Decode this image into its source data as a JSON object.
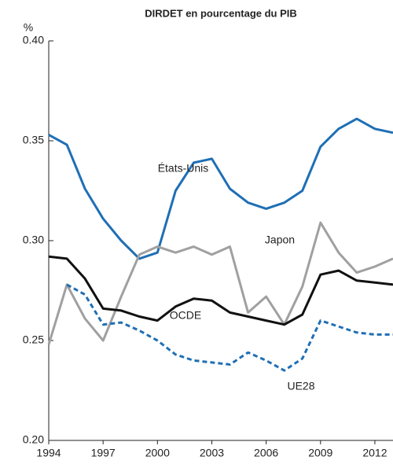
{
  "chart_data": {
    "type": "line",
    "title": "DIRDET en pourcentage du PIB",
    "y_label": "%",
    "x": [
      1994,
      1995,
      1996,
      1997,
      1998,
      1999,
      2000,
      2001,
      2002,
      2003,
      2004,
      2005,
      2006,
      2007,
      2008,
      2009,
      2010,
      2011,
      2012,
      2013
    ],
    "xlim": [
      1994,
      2013
    ],
    "xticks": [
      1994,
      1997,
      2000,
      2003,
      2006,
      2009,
      2012
    ],
    "ylim": [
      0.2,
      0.4
    ],
    "yticks": [
      {
        "value": 0.2,
        "label": "0.20"
      },
      {
        "value": 0.25,
        "label": "0.25"
      },
      {
        "value": 0.3,
        "label": "0.30"
      },
      {
        "value": 0.35,
        "label": "0.35"
      },
      {
        "value": 0.4,
        "label": "0.40"
      }
    ],
    "grid": false,
    "series": [
      {
        "name": "États-Unis",
        "color": "#1f6fb5",
        "dashed": false,
        "values": [
          0.353,
          0.348,
          0.326,
          0.311,
          0.3,
          0.291,
          0.294,
          0.325,
          0.339,
          0.341,
          0.326,
          0.319,
          0.316,
          0.319,
          0.325,
          0.347,
          0.356,
          0.361,
          0.356,
          0.354
        ]
      },
      {
        "name": "Japon",
        "color": "#a0a0a0",
        "dashed": false,
        "values": [
          0.248,
          0.278,
          0.261,
          0.25,
          0.272,
          0.293,
          0.297,
          0.294,
          0.297,
          0.293,
          0.297,
          0.264,
          0.272,
          0.258,
          0.277,
          0.309,
          0.294,
          0.284,
          0.287,
          0.291
        ]
      },
      {
        "name": "OCDE",
        "color": "#111111",
        "dashed": false,
        "values": [
          0.292,
          0.291,
          0.281,
          0.266,
          0.265,
          0.262,
          0.26,
          0.267,
          0.271,
          0.27,
          0.264,
          0.262,
          0.26,
          0.258,
          0.263,
          0.283,
          0.285,
          0.28,
          0.279,
          0.278
        ]
      },
      {
        "name": "UE28",
        "color": "#1f6fb5",
        "dashed": true,
        "values": [
          null,
          0.278,
          0.273,
          0.258,
          0.259,
          0.255,
          0.25,
          0.243,
          0.24,
          0.239,
          0.238,
          0.244,
          0.24,
          0.235,
          0.241,
          0.26,
          0.257,
          0.254,
          0.253,
          0.253
        ]
      }
    ]
  }
}
